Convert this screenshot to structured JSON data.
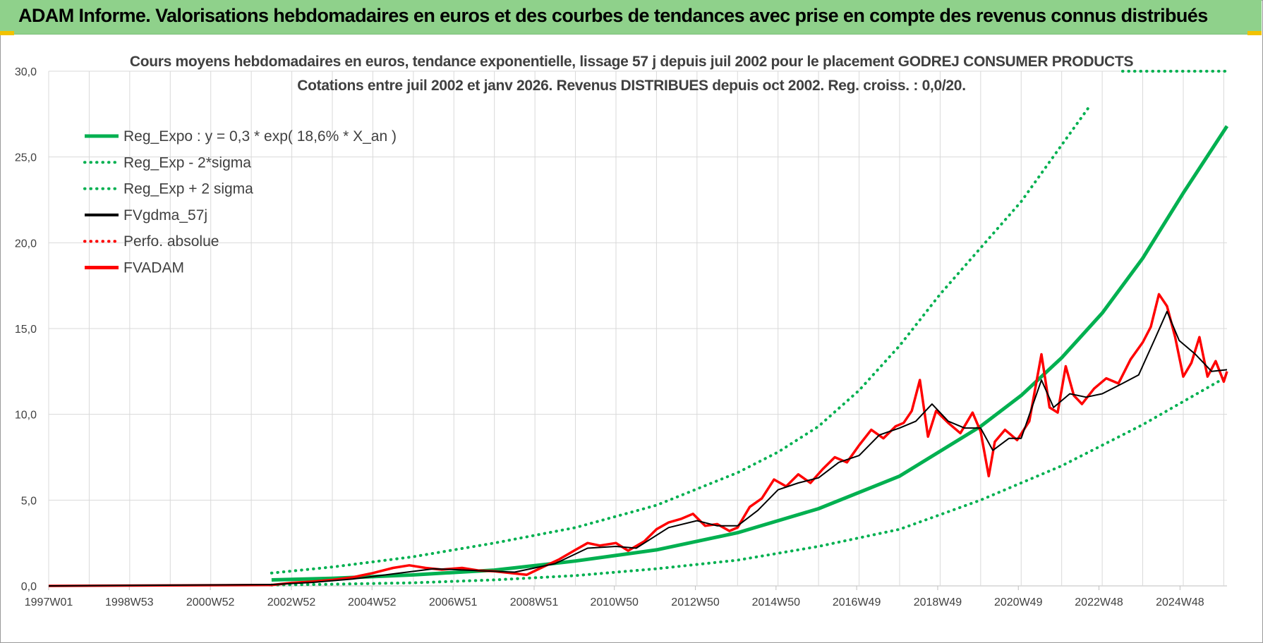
{
  "banner": {
    "title": "ADAM Informe. Valorisations hebdomadaires en euros et des courbes de tendances avec prise en compte des revenus connus distribués"
  },
  "colors": {
    "banner_bg": "#8fd18b",
    "green": "#00b050",
    "black": "#000000",
    "red": "#ff0000",
    "grid": "#d9d9d9"
  },
  "chart_data": {
    "type": "line",
    "title": "Cours moyens hebdomadaires en euros, tendance exponentielle, lissage 57 j depuis juil 2002 pour le placement GODREJ CONSUMER PRODUCTS",
    "subtitle": "Cotations entre juil 2002 et janv 2026. Revenus DISTRIBUES depuis oct 2002. Reg. croiss. : 0,0/20.",
    "xlabel": "",
    "ylabel": "",
    "x_range": [
      1997.0,
      2026.08
    ],
    "ylim": [
      0,
      30
    ],
    "y_ticks": [
      0,
      5,
      10,
      15,
      20,
      25,
      30
    ],
    "y_tick_labels": [
      "0,0",
      "5,0",
      "10,0",
      "15,0",
      "20,0",
      "25,0",
      "30,0"
    ],
    "x_ticks": [
      1997.0,
      1998.99,
      2000.99,
      2002.99,
      2004.98,
      2006.98,
      2008.98,
      2010.96,
      2012.96,
      2014.95,
      2016.94,
      2018.94,
      2020.93,
      2022.92,
      2024.92
    ],
    "x_tick_labels": [
      "1997W01",
      "1998W53",
      "2000W52",
      "2002W52",
      "2004W52",
      "2006W51",
      "2008W51",
      "2010W50",
      "2012W50",
      "2014W50",
      "2016W49",
      "2018W49",
      "2020W49",
      "2022W48",
      "2024W48"
    ],
    "grid": "vertical and horizontal",
    "legend": "top-left",
    "series": [
      {
        "name": "Reg_Expo : y = 0,3 * exp( 18,6% *  X_an )",
        "style": "solid",
        "color": "#00b050",
        "x": [
          2002.5,
          2004,
          2006,
          2008,
          2010,
          2012,
          2014,
          2016,
          2018,
          2020,
          2021,
          2022,
          2023,
          2024,
          2025,
          2026.08
        ],
        "y": [
          0.35,
          0.44,
          0.64,
          0.92,
          1.45,
          2.1,
          3.1,
          4.5,
          6.4,
          9.3,
          11.1,
          13.3,
          15.9,
          19.1,
          22.9,
          26.8
        ]
      },
      {
        "name": "Reg_Exp - 2*sigma",
        "style": "dotted",
        "color": "#00b050",
        "x": [
          2002.5,
          2004,
          2006,
          2008,
          2010,
          2012,
          2014,
          2016,
          2018,
          2020,
          2022,
          2024,
          2026.08
        ],
        "y": [
          0.05,
          0.1,
          0.18,
          0.35,
          0.6,
          1.0,
          1.5,
          2.3,
          3.3,
          5.0,
          7.0,
          9.4,
          12.2
        ]
      },
      {
        "name": "Reg_Exp + 2 sigma",
        "style": "dotted",
        "color": "#00b050",
        "x": [
          2002.5,
          2004,
          2006,
          2008,
          2010,
          2012,
          2014,
          2015,
          2016,
          2017,
          2018,
          2019,
          2020,
          2021,
          2022,
          2022.7
        ],
        "y": [
          0.75,
          1.1,
          1.7,
          2.5,
          3.4,
          4.7,
          6.6,
          7.8,
          9.3,
          11.4,
          14.0,
          17.0,
          19.7,
          22.4,
          25.7,
          28.0
        ]
      },
      {
        "name": "FVgdma_57j",
        "style": "solid",
        "color": "#000000",
        "x": [
          1997.0,
          2002.5,
          2003.5,
          2004.5,
          2005.5,
          2006.5,
          2007.5,
          2008.5,
          2009.5,
          2010.3,
          2011.0,
          2011.5,
          2012.3,
          2013.0,
          2013.5,
          2014.0,
          2014.5,
          2015.0,
          2015.5,
          2016.0,
          2016.5,
          2017.0,
          2017.5,
          2018.0,
          2018.4,
          2018.8,
          2019.2,
          2019.6,
          2020.0,
          2020.3,
          2020.7,
          2021.0,
          2021.5,
          2021.8,
          2022.2,
          2022.6,
          2023.0,
          2023.5,
          2023.9,
          2024.3,
          2024.6,
          2024.9,
          2025.3,
          2025.7,
          2026.08
        ],
        "y": [
          0,
          0.08,
          0.2,
          0.4,
          0.7,
          1.0,
          0.9,
          0.8,
          1.3,
          2.2,
          2.3,
          2.2,
          3.4,
          3.8,
          3.5,
          3.5,
          4.4,
          5.6,
          6.0,
          6.3,
          7.2,
          7.6,
          8.8,
          9.2,
          9.6,
          10.6,
          9.6,
          9.2,
          9.2,
          7.9,
          8.6,
          8.6,
          12.0,
          10.4,
          11.2,
          11.0,
          11.2,
          11.8,
          12.3,
          14.4,
          16.0,
          14.3,
          13.5,
          12.5,
          12.6
        ]
      },
      {
        "name": "Perfo. absolue",
        "style": "dotted",
        "color": "#ff0000",
        "x": [],
        "y": []
      },
      {
        "name": "FVADAM",
        "style": "solid",
        "color": "#ff0000",
        "x": [
          1997.0,
          2002.5,
          2003.0,
          2003.5,
          2004.0,
          2004.5,
          2005.0,
          2005.5,
          2005.9,
          2006.3,
          2006.7,
          2007.2,
          2007.6,
          2008.0,
          2008.4,
          2008.8,
          2009.2,
          2009.6,
          2010.0,
          2010.3,
          2010.6,
          2011.0,
          2011.3,
          2011.7,
          2012.0,
          2012.3,
          2012.6,
          2012.9,
          2013.2,
          2013.5,
          2013.8,
          2014.0,
          2014.3,
          2014.6,
          2014.9,
          2015.2,
          2015.5,
          2015.8,
          2016.1,
          2016.4,
          2016.7,
          2017.0,
          2017.3,
          2017.6,
          2017.9,
          2018.1,
          2018.3,
          2018.5,
          2018.7,
          2018.9,
          2019.2,
          2019.5,
          2019.8,
          2020.0,
          2020.2,
          2020.35,
          2020.6,
          2020.9,
          2021.2,
          2021.5,
          2021.7,
          2021.9,
          2022.1,
          2022.3,
          2022.5,
          2022.8,
          2023.1,
          2023.4,
          2023.7,
          2024.0,
          2024.2,
          2024.4,
          2024.6,
          2024.8,
          2025.0,
          2025.2,
          2025.4,
          2025.6,
          2025.8,
          2026.0,
          2026.08
        ],
        "y": [
          0,
          0.05,
          0.18,
          0.25,
          0.35,
          0.5,
          0.75,
          1.05,
          1.2,
          1.05,
          0.95,
          1.05,
          0.9,
          0.85,
          0.75,
          0.65,
          1.1,
          1.55,
          2.1,
          2.5,
          2.35,
          2.5,
          2.05,
          2.6,
          3.3,
          3.7,
          3.9,
          4.2,
          3.5,
          3.6,
          3.2,
          3.4,
          4.6,
          5.1,
          6.2,
          5.8,
          6.5,
          6.0,
          6.8,
          7.5,
          7.2,
          8.2,
          9.1,
          8.6,
          9.3,
          9.5,
          10.2,
          12.0,
          8.7,
          10.2,
          9.5,
          8.9,
          10.1,
          9.0,
          6.4,
          8.4,
          9.1,
          8.5,
          9.6,
          13.5,
          10.4,
          10.1,
          12.8,
          11.1,
          10.6,
          11.5,
          12.1,
          11.8,
          13.2,
          14.2,
          15.1,
          17.0,
          16.3,
          14.5,
          12.2,
          13.0,
          14.5,
          12.2,
          13.1,
          11.9,
          12.5
        ]
      }
    ]
  }
}
